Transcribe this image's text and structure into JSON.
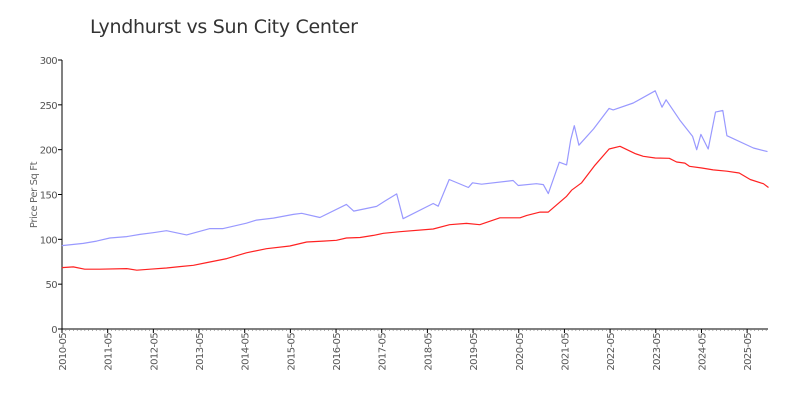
{
  "chart_data": {
    "type": "line",
    "title": "Lyndhurst vs Sun City Center",
    "xlabel": "",
    "ylabel": "Price Per Sq Ft",
    "ylim": [
      0,
      300
    ],
    "xlim": [
      2010.333,
      2025.79
    ],
    "yticks": [
      0,
      50,
      100,
      150,
      200,
      250,
      300
    ],
    "xticks": [
      {
        "value": 2010.333,
        "label": "2010-05"
      },
      {
        "value": 2011.333,
        "label": "2011-05"
      },
      {
        "value": 2012.333,
        "label": "2012-05"
      },
      {
        "value": 2013.333,
        "label": "2013-05"
      },
      {
        "value": 2014.333,
        "label": "2014-05"
      },
      {
        "value": 2015.333,
        "label": "2015-05"
      },
      {
        "value": 2016.333,
        "label": "2016-05"
      },
      {
        "value": 2017.333,
        "label": "2017-05"
      },
      {
        "value": 2018.333,
        "label": "2018-05"
      },
      {
        "value": 2019.333,
        "label": "2019-05"
      },
      {
        "value": 2020.333,
        "label": "2020-05"
      },
      {
        "value": 2021.333,
        "label": "2021-05"
      },
      {
        "value": 2022.333,
        "label": "2022-05"
      },
      {
        "value": 2023.333,
        "label": "2023-05"
      },
      {
        "value": 2024.333,
        "label": "2024-05"
      },
      {
        "value": 2025.333,
        "label": "2025-05"
      }
    ],
    "grid": false,
    "series": [
      {
        "color": "#9999ff",
        "x": [
          2010.33,
          2010.8,
          2011.09,
          2011.38,
          2011.75,
          2012.04,
          2012.33,
          2012.62,
          2013.06,
          2013.57,
          2013.86,
          2014.37,
          2014.59,
          2014.96,
          2015.4,
          2015.58,
          2015.98,
          2016.56,
          2016.72,
          2017.22,
          2017.4,
          2017.66,
          2017.8,
          2018.46,
          2018.57,
          2018.81,
          2019.23,
          2019.32,
          2019.52,
          2020.21,
          2020.32,
          2020.72,
          2020.87,
          2020.98,
          2021.22,
          2021.38,
          2021.47,
          2021.55,
          2021.65,
          2021.97,
          2022.31,
          2022.4,
          2022.84,
          2023.32,
          2023.47,
          2023.56,
          2023.86,
          2024.14,
          2024.23,
          2024.32,
          2024.48,
          2024.64,
          2024.8,
          2024.89,
          2025.47,
          2025.78
        ],
        "y": [
          93,
          95.5,
          98,
          101.5,
          103,
          105.5,
          107.4,
          109.6,
          105,
          112,
          112,
          118,
          121.5,
          123.7,
          127.8,
          129,
          124.4,
          139,
          131.5,
          136.7,
          142.6,
          150.7,
          123,
          140,
          137,
          166.7,
          157.8,
          163,
          161.5,
          165.6,
          160,
          162,
          161,
          151,
          186,
          183,
          211,
          226.7,
          205,
          223,
          246,
          244.4,
          252,
          265.6,
          247.4,
          255.6,
          233,
          214.8,
          200,
          217,
          200.7,
          241.9,
          243.7,
          215.6,
          201.9,
          197.8
        ]
      },
      {
        "color": "#ff2222",
        "x": [
          2010.33,
          2010.58,
          2010.83,
          2011.16,
          2011.75,
          2011.97,
          2012.26,
          2012.62,
          2012.91,
          2013.21,
          2013.5,
          2013.94,
          2014.37,
          2014.81,
          2015.32,
          2015.69,
          2016.05,
          2016.34,
          2016.56,
          2016.86,
          2017.15,
          2017.37,
          2017.73,
          2018.46,
          2018.82,
          2019.19,
          2019.48,
          2019.92,
          2020.36,
          2020.51,
          2020.8,
          2020.98,
          2021.38,
          2021.49,
          2021.71,
          2022.0,
          2022.31,
          2022.55,
          2022.88,
          2023.06,
          2023.32,
          2023.63,
          2023.79,
          2023.97,
          2024.07,
          2024.34,
          2024.59,
          2024.89,
          2025.16,
          2025.4,
          2025.69,
          2025.8
        ],
        "y": [
          68.5,
          69.3,
          66.7,
          66.7,
          67.4,
          65.6,
          66.7,
          68,
          69.6,
          71,
          74,
          78.5,
          85,
          89.6,
          92.6,
          97,
          98,
          98.9,
          101.5,
          102,
          104.4,
          106.7,
          108.5,
          111.5,
          116.3,
          117.8,
          116.3,
          124,
          124,
          126.7,
          130.4,
          130.4,
          148,
          154.8,
          163,
          182.6,
          200.7,
          203.7,
          195.6,
          192.6,
          190.7,
          190.4,
          186.3,
          185,
          181.5,
          179.6,
          177.4,
          176,
          174,
          166.7,
          162,
          157.8
        ]
      }
    ]
  }
}
